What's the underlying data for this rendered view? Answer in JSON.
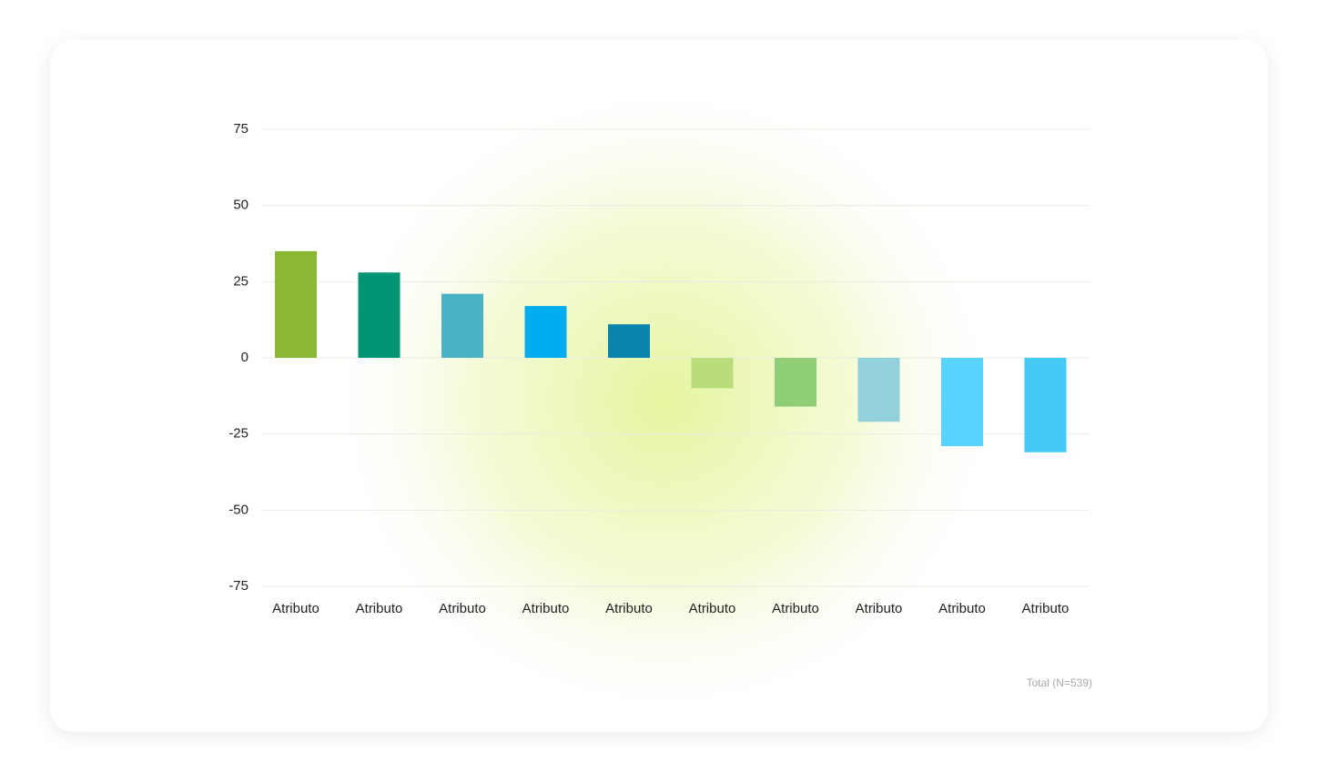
{
  "chart_data": {
    "type": "bar",
    "categories": [
      "Atributo",
      "Atributo",
      "Atributo",
      "Atributo",
      "Atributo",
      "Atributo",
      "Atributo",
      "Atributo",
      "Atributo",
      "Atributo"
    ],
    "values": [
      35,
      28,
      21,
      17,
      11,
      -10,
      -16,
      -21,
      -29,
      -31
    ],
    "colors": [
      "#8ab833",
      "#009473",
      "#4bb3c4",
      "#00aeef",
      "#0a83ad",
      "#b9dd7a",
      "#8fce76",
      "#92d0dc",
      "#5ad4ff",
      "#45caf7"
    ],
    "ylim": [
      -75,
      75
    ],
    "yticks": [
      -75,
      -50,
      -25,
      0,
      25,
      50,
      75
    ],
    "grid": true,
    "footnote": "Total (N=539)"
  }
}
